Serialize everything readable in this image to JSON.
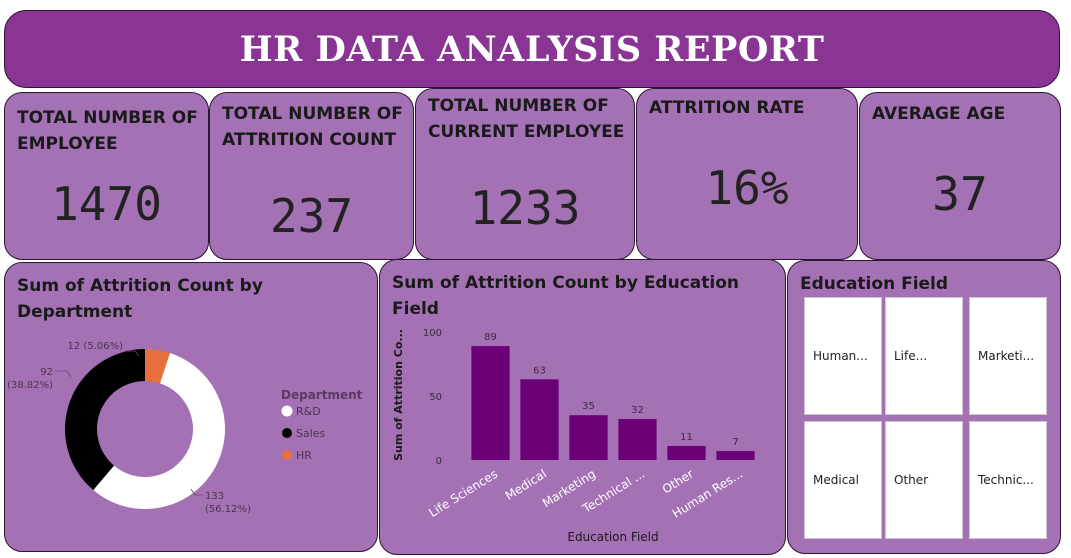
{
  "header": {
    "title": "HR DATA ANALYSIS REPORT"
  },
  "kpis": [
    {
      "title": "TOTAL NUMBER OF EMPLOYEE",
      "value": "1470"
    },
    {
      "title": "TOTAL NUMBER OF ATTRITION COUNT",
      "value": "237"
    },
    {
      "title": "TOTAL NUMBER OF CURRENT EMPLOYEE",
      "value": "1233"
    },
    {
      "title": "ATTRITION RATE",
      "value": "16%"
    },
    {
      "title": "AVERAGE AGE",
      "value": "37"
    }
  ],
  "chart_data": [
    {
      "type": "pie",
      "title": "Sum of Attrition Count by Department",
      "legend_title": "Department",
      "legend_position": "right",
      "slices": [
        {
          "label": "R&D",
          "value": 133,
          "percent": "56.12%",
          "color": "#ffffff"
        },
        {
          "label": "Sales",
          "value": 92,
          "percent": "38.82%",
          "color": "#000000"
        },
        {
          "label": "HR",
          "value": 12,
          "percent": "5.06%",
          "color": "#e8703a"
        }
      ]
    },
    {
      "type": "bar",
      "title": "Sum of Attrition Count by Education Field",
      "xlabel": "Education Field",
      "ylabel": "Sum of Attrition Co...",
      "ylim": [
        0,
        100
      ],
      "yticks": [
        0,
        50,
        100
      ],
      "categories": [
        "Life Sciences",
        "Medical",
        "Marketing",
        "Technical ...",
        "Other",
        "Human Res..."
      ],
      "values": [
        89,
        63,
        35,
        32,
        11,
        7
      ],
      "bar_color": "#6b0077"
    }
  ],
  "education_filter": {
    "title": "Education Field",
    "tiles": [
      "Human...",
      "Life...",
      "Marketi...",
      "Medical",
      "Other",
      "Technic..."
    ]
  }
}
